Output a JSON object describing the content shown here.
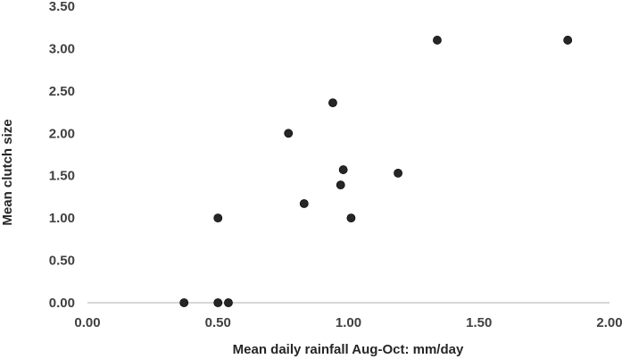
{
  "chart_data": {
    "type": "scatter",
    "title": "",
    "xlabel": "Mean daily rainfall Aug-Oct: mm/day",
    "ylabel": "Mean clutch size",
    "xlim": [
      0,
      2
    ],
    "ylim": [
      0,
      3.5
    ],
    "x_ticks": [
      "0.00",
      "0.50",
      "1.00",
      "1.50",
      "2.00"
    ],
    "y_ticks": [
      "0.00",
      "0.50",
      "1.00",
      "1.50",
      "2.00",
      "2.50",
      "3.00",
      "3.50"
    ],
    "grid": false,
    "legend": "none",
    "marker_color": "#262626",
    "axis_color": "#bfbfbf",
    "points": [
      {
        "x": 0.37,
        "y": 0.0
      },
      {
        "x": 0.5,
        "y": 0.0
      },
      {
        "x": 0.54,
        "y": 0.0
      },
      {
        "x": 0.5,
        "y": 1.0
      },
      {
        "x": 0.77,
        "y": 2.0
      },
      {
        "x": 0.83,
        "y": 1.17
      },
      {
        "x": 0.94,
        "y": 2.36
      },
      {
        "x": 0.98,
        "y": 1.57
      },
      {
        "x": 0.97,
        "y": 1.39
      },
      {
        "x": 1.01,
        "y": 1.0
      },
      {
        "x": 1.19,
        "y": 1.53
      },
      {
        "x": 1.34,
        "y": 3.1
      },
      {
        "x": 1.84,
        "y": 3.1
      }
    ]
  }
}
